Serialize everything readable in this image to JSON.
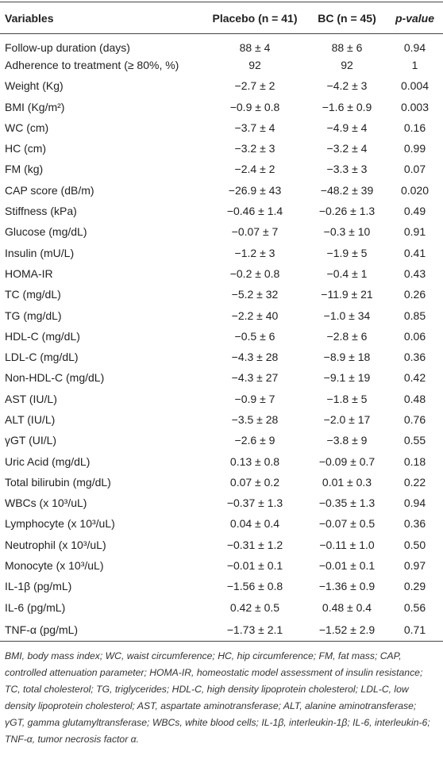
{
  "table": {
    "header": [
      "Variables",
      "Placebo (n = 41)",
      "BC (n = 45)",
      "p-value"
    ],
    "rows": [
      [
        "Follow-up duration (days)",
        "88 ± 4",
        "88 ± 6",
        "0.94"
      ],
      [
        "Adherence to treatment (≥ 80%, %)",
        "92",
        "92",
        "1"
      ],
      [
        "Weight (Kg)",
        "−2.7 ± 2",
        "−4.2 ± 3",
        "0.004"
      ],
      [
        "BMI (Kg/m²)",
        "−0.9 ± 0.8",
        "−1.6 ± 0.9",
        "0.003"
      ],
      [
        "WC (cm)",
        "−3.7 ± 4",
        "−4.9 ± 4",
        "0.16"
      ],
      [
        "HC (cm)",
        "−3.2 ± 3",
        "−3.2 ± 4",
        "0.99"
      ],
      [
        "FM (kg)",
        "−2.4 ± 2",
        "−3.3 ± 3",
        "0.07"
      ],
      [
        "CAP score (dB/m)",
        "−26.9 ± 43",
        "−48.2 ± 39",
        "0.020"
      ],
      [
        "Stiffness (kPa)",
        "−0.46 ± 1.4",
        "−0.26 ± 1.3",
        "0.49"
      ],
      [
        "Glucose (mg/dL)",
        "−0.07 ± 7",
        "−0.3 ± 10",
        "0.91"
      ],
      [
        "Insulin (mU/L)",
        "−1.2 ± 3",
        "−1.9 ± 5",
        "0.41"
      ],
      [
        "HOMA-IR",
        "−0.2 ± 0.8",
        "−0.4 ± 1",
        "0.43"
      ],
      [
        "TC (mg/dL)",
        "−5.2 ± 32",
        "−11.9 ± 21",
        "0.26"
      ],
      [
        "TG (mg/dL)",
        "−2.2 ± 40",
        "−1.0 ± 34",
        "0.85"
      ],
      [
        "HDL-C (mg/dL)",
        "−0.5 ± 6",
        "−2.8 ± 6",
        "0.06"
      ],
      [
        "LDL-C (mg/dL)",
        "−4.3 ± 28",
        "−8.9 ± 18",
        "0.36"
      ],
      [
        "Non-HDL-C (mg/dL)",
        "−4.3 ± 27",
        "−9.1 ± 19",
        "0.42"
      ],
      [
        "AST (IU/L)",
        "−0.9 ± 7",
        "−1.8 ± 5",
        "0.48"
      ],
      [
        "ALT (IU/L)",
        "−3.5 ± 28",
        "−2.0 ± 17",
        "0.76"
      ],
      [
        "γGT (UI/L)",
        "−2.6 ± 9",
        "−3.8 ± 9",
        "0.55"
      ],
      [
        "Uric Acid (mg/dL)",
        "0.13 ± 0.8",
        "−0.09 ± 0.7",
        "0.18"
      ],
      [
        "Total bilirubin (mg/dL)",
        "0.07 ± 0.2",
        "0.01 ± 0.3",
        "0.22"
      ],
      [
        "WBCs (x 10³/uL)",
        "−0.37 ± 1.3",
        "−0.35 ± 1.3",
        "0.94"
      ],
      [
        "Lymphocyte (x 10³/uL)",
        "0.04 ± 0.4",
        "−0.07 ± 0.5",
        "0.36"
      ],
      [
        "Neutrophil (x 10³/uL)",
        "−0.31 ± 1.2",
        "−0.11 ± 1.0",
        "0.50"
      ],
      [
        "Monocyte (x 10³/uL)",
        "−0.01 ± 0.1",
        "−0.01 ± 0.1",
        "0.97"
      ],
      [
        "IL-1β (pg/mL)",
        "−1.56 ± 0.8",
        "−1.36 ± 0.9",
        "0.29"
      ],
      [
        "IL-6 (pg/mL)",
        "0.42 ± 0.5",
        "0.48 ± 0.4",
        "0.56"
      ],
      [
        "TNF-α (pg/mL)",
        "−1.73 ± 2.1",
        "−1.52 ± 2.9",
        "0.71"
      ]
    ]
  },
  "footnote": "BMI, body mass index; WC, waist circumference; HC, hip circumference; FM, fat mass; CAP, controlled attenuation parameter; HOMA-IR, homeostatic model assessment of insulin resistance; TC, total cholesterol; TG, triglycerides; HDL-C, high density lipoprotein cholesterol; LDL-C, low density lipoprotein cholesterol; AST, aspartate aminotransferase; ALT, alanine aminotransferase; γGT, gamma glutamyltransferase; WBCs, white blood cells; IL-1β, interleukin-1β; IL-6, interleukin-6; TNF-α, tumor necrosis factor α."
}
